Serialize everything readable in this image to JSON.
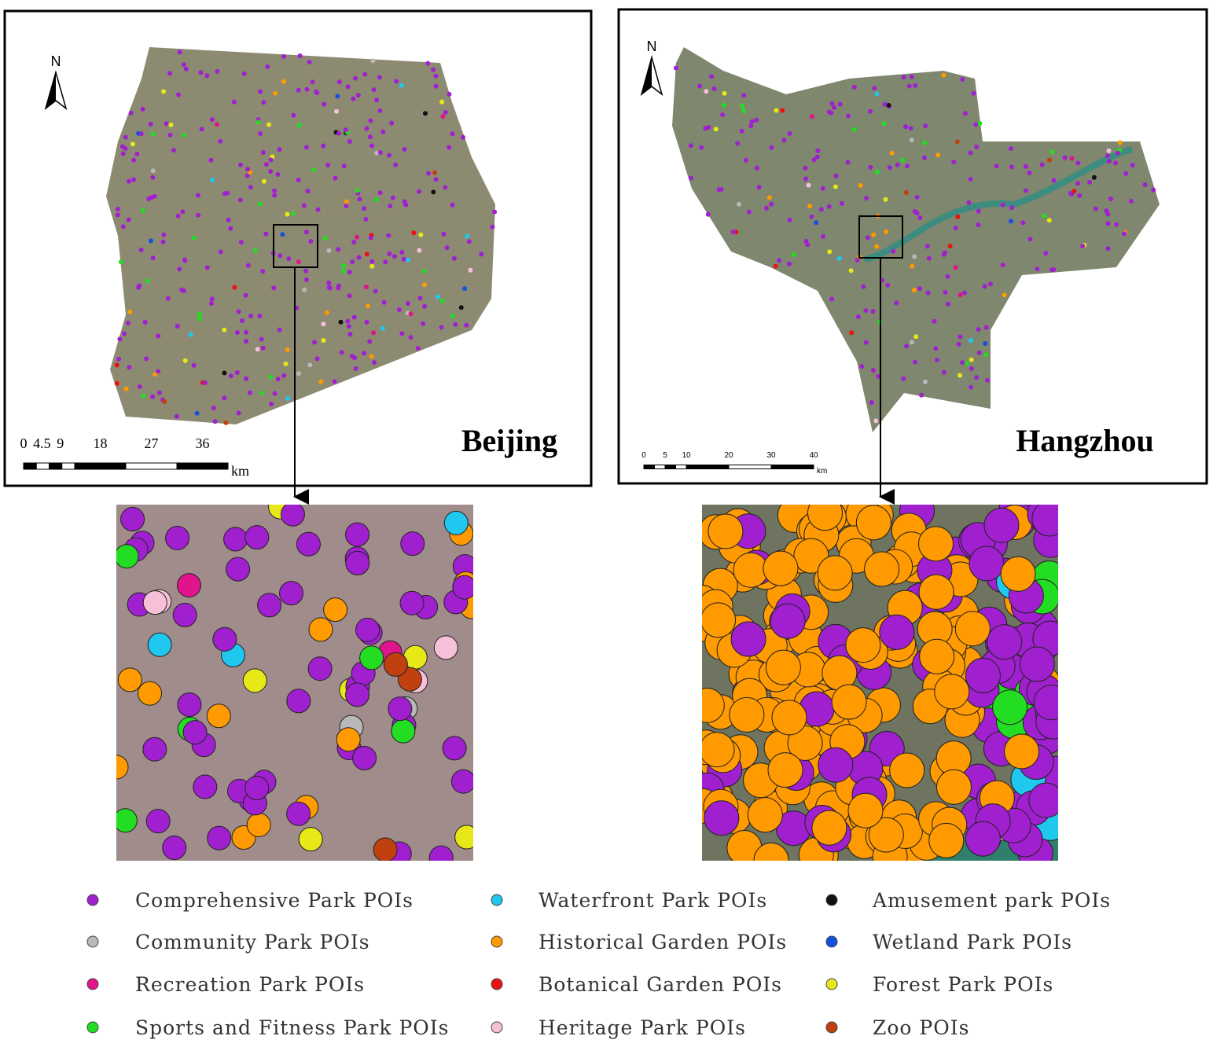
{
  "maps": [
    {
      "north": "N",
      "name": "Beijing",
      "scale": {
        "labels": [
          "0",
          "4.5",
          "9",
          "18",
          "27",
          "36"
        ],
        "unit": "km"
      }
    },
    {
      "north": "N",
      "name": "Hangzhou",
      "scale": {
        "labels": [
          "0",
          "5",
          "10",
          "20",
          "30",
          "40"
        ],
        "unit": "km"
      }
    }
  ],
  "legend": [
    {
      "label": "Comprehensive Park POIs",
      "color": "#a020d0"
    },
    {
      "label": "Community Park POIs",
      "color": "#b8b8b8"
    },
    {
      "label": "Recreation Park POIs",
      "color": "#e0148c"
    },
    {
      "label": "Sports and Fitness Park POIs",
      "color": "#22dd22"
    },
    {
      "label": "Waterfront Park POIs",
      "color": "#20c8f0"
    },
    {
      "label": "Historical Garden POIs",
      "color": "#ff9a00"
    },
    {
      "label": "Botanical Garden POIs",
      "color": "#ee1010"
    },
    {
      "label": "Heritage Park POIs",
      "color": "#f8c0d8"
    },
    {
      "label": "Amusement  park   POIs",
      "color": "#111111"
    },
    {
      "label": "Wetland Park POIs",
      "color": "#1450e0"
    },
    {
      "label": "Forest Park POIs",
      "color": "#e8e818"
    },
    {
      "label": "Zoo POIs",
      "color": "#c04010"
    }
  ]
}
